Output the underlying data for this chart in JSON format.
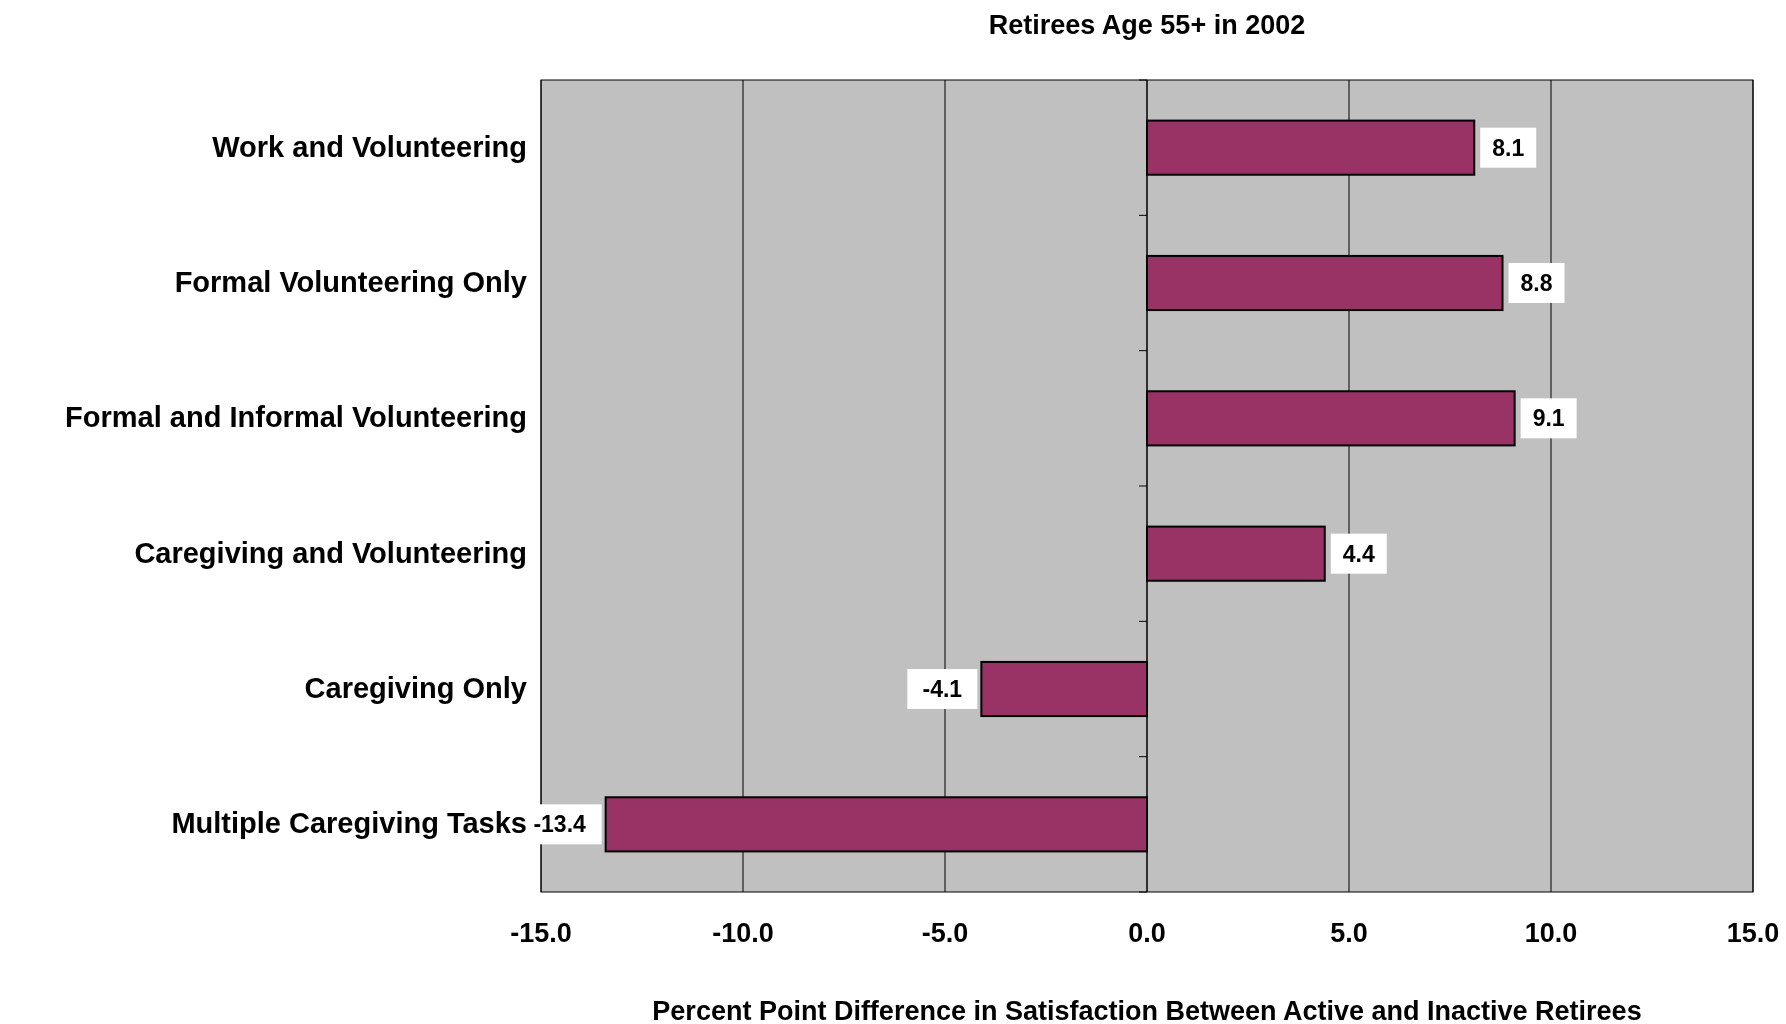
{
  "chart_data": {
    "type": "bar",
    "orientation": "horizontal",
    "title": "Retirees Age 55+ in 2002",
    "xlabel": "Percent Point Difference in Satisfaction Between Active and Inactive Retirees",
    "categories": [
      "Work and Volunteering",
      "Formal Volunteering Only",
      "Formal and Informal Volunteering",
      "Caregiving and Volunteering",
      "Caregiving Only",
      "Multiple Caregiving Tasks"
    ],
    "values": [
      8.1,
      8.8,
      9.1,
      4.4,
      -4.1,
      -13.4
    ],
    "color": "#993366",
    "xlim": [
      -15,
      15
    ],
    "xticks": [
      {
        "value": -15,
        "label": "-15.0"
      },
      {
        "value": -10,
        "label": "-10.0"
      },
      {
        "value": -5,
        "label": "-5.0"
      },
      {
        "value": 0,
        "label": "0.0"
      },
      {
        "value": 5,
        "label": "5.0"
      },
      {
        "value": 10,
        "label": "10.0"
      },
      {
        "value": 15,
        "label": "15.0"
      }
    ],
    "grid": "x",
    "data_labels": true
  }
}
